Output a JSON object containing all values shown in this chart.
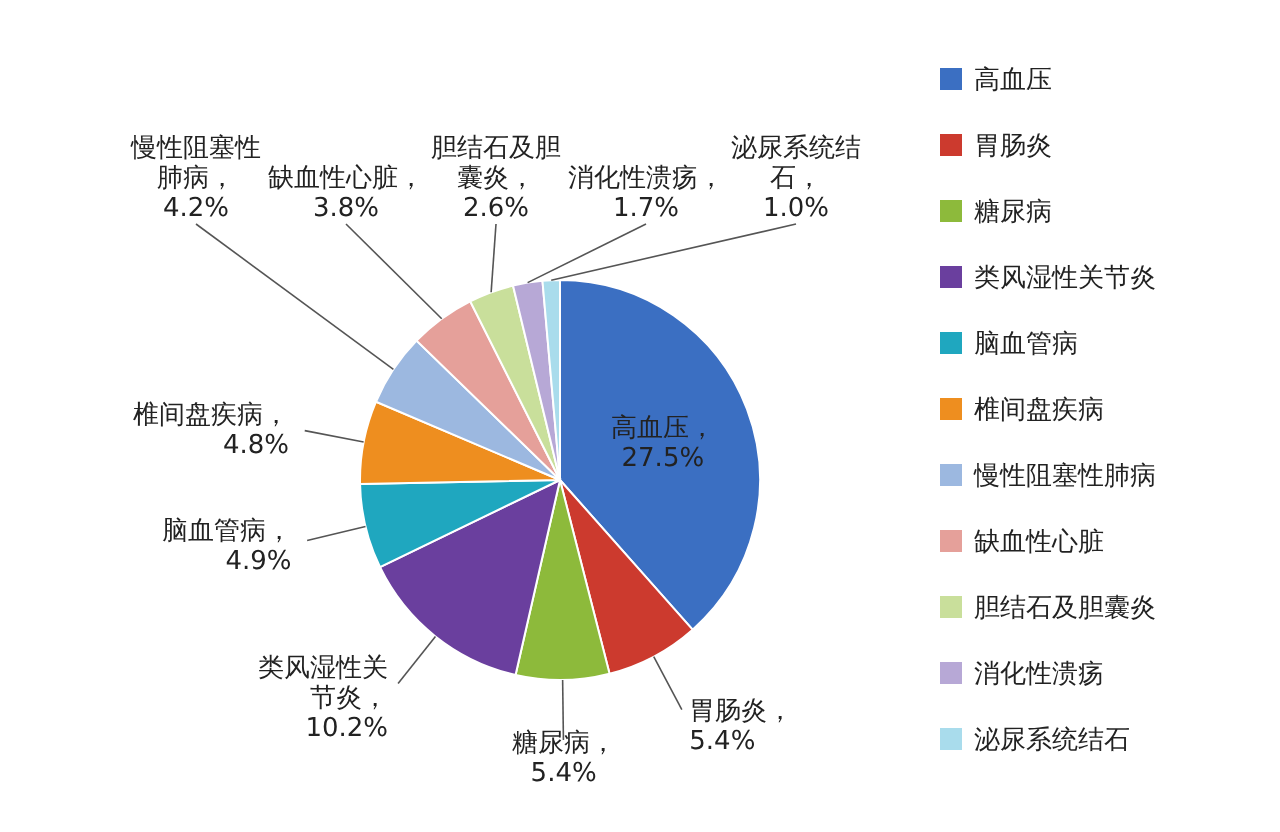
{
  "chart_data": {
    "type": "pie",
    "categories": [
      "高血压",
      "胃肠炎",
      "糖尿病",
      "类风湿性关节炎",
      "脑血管病",
      "椎间盘疾病",
      "慢性阻塞性肺病",
      "缺血性心脏",
      "胆结石及胆囊炎",
      "消化性溃疡",
      "泌尿系统结石"
    ],
    "values": [
      27.5,
      5.4,
      5.4,
      10.2,
      4.9,
      4.8,
      4.2,
      3.8,
      2.6,
      1.7,
      1.0
    ],
    "colors": [
      "#3b6fc2",
      "#cc3a2e",
      "#8dba3b",
      "#6a3f9e",
      "#1fa7bf",
      "#ee8e1f",
      "#9cb8e0",
      "#e5a09a",
      "#c9df9b",
      "#b7a8d6",
      "#a9dcec"
    ],
    "value_labels": [
      "高血压，27.5%",
      "胃肠炎，5.4%",
      "糖尿病，5.4%",
      "类风湿性关节炎，10.2%",
      "脑血管病，4.9%",
      "椎间盘疾病，4.8%",
      "慢性阻塞性肺病，4.2%",
      "缺血性心脏，3.8%",
      "胆结石及胆囊炎，2.6%",
      "消化性溃疡，1.7%",
      "泌尿系统结石，1.0%"
    ],
    "legend": "right"
  }
}
